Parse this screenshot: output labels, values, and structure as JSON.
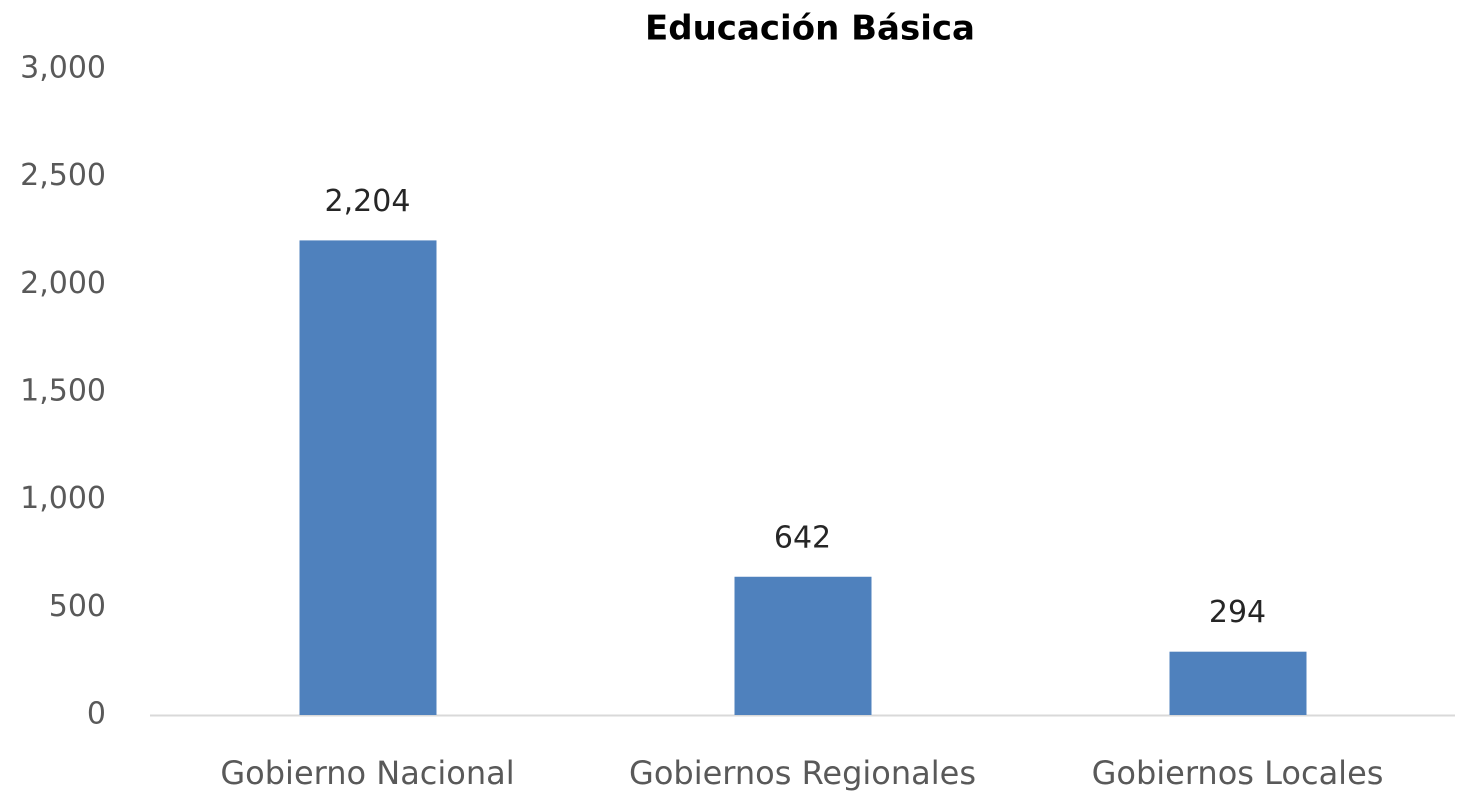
{
  "chart_data": {
    "type": "bar",
    "title": "Educación Básica",
    "categories": [
      "Gobierno Nacional",
      "Gobiernos Regionales",
      "Gobiernos Locales"
    ],
    "values": [
      2204,
      642,
      294
    ],
    "value_labels": [
      "2,204",
      "642",
      "294"
    ],
    "color": "#4f81bd",
    "ylim": [
      0,
      3000
    ],
    "yticks": [
      0,
      500,
      {
        "value": 1000,
        "label": "1,000"
      },
      {
        "value": 1500,
        "label": "1,500"
      },
      {
        "value": 2000,
        "label": "2,000"
      },
      {
        "value": 2500,
        "label": "2,500"
      },
      {
        "value": 3000,
        "label": "3,000"
      }
    ],
    "grid": false
  }
}
